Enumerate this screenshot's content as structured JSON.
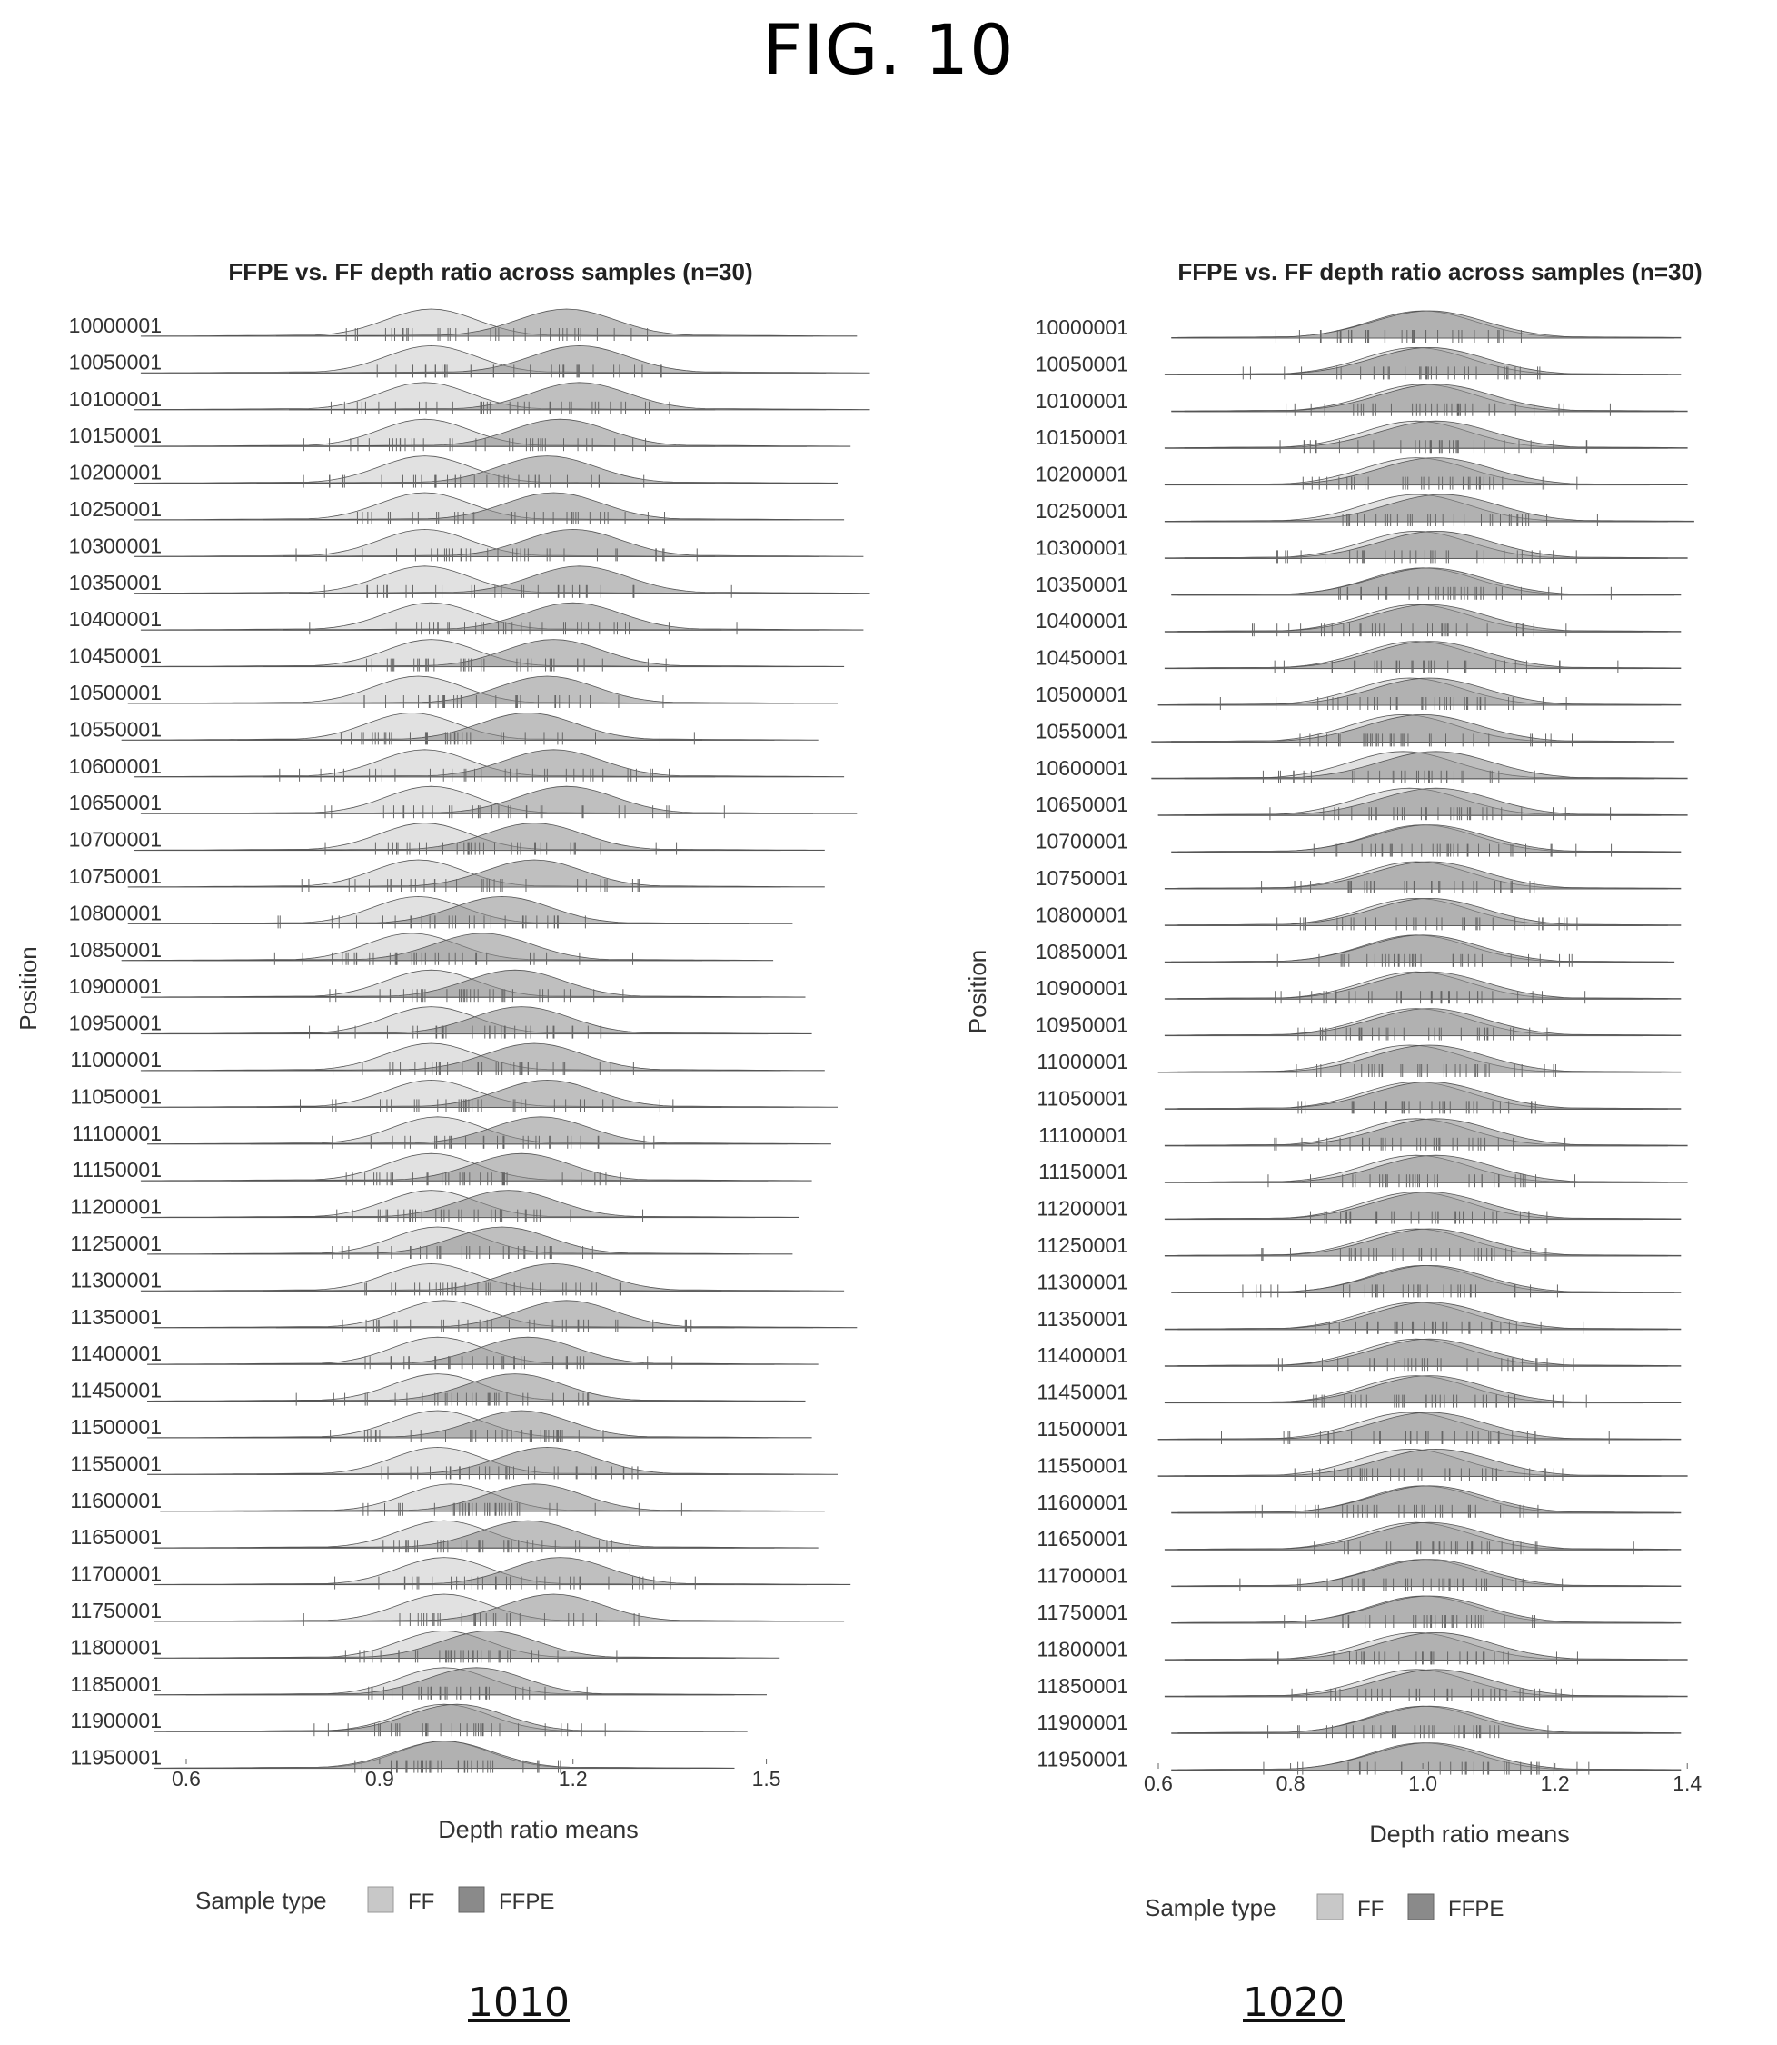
{
  "figure_title": "FIG. 10",
  "panel_refs": [
    "1010",
    "1020"
  ],
  "colors": {
    "ff": "#c8c8c8",
    "ffpe": "#8a8a8a",
    "outline": "#555555",
    "tick": "#666666"
  },
  "chart_data": [
    {
      "type": "ridgeline",
      "title": "FFPE vs. FF depth ratio across samples (n=30)",
      "xlabel": "Depth ratio means",
      "ylabel": "Position",
      "xlim": [
        0.6,
        1.65
      ],
      "xticks": [
        0.6,
        0.9,
        1.2,
        1.5
      ],
      "legend": {
        "title": "Sample type",
        "entries": [
          "FF",
          "FFPE"
        ],
        "position": "bottom"
      },
      "categories": [
        "10000001",
        "10050001",
        "10100001",
        "10150001",
        "10200001",
        "10250001",
        "10300001",
        "10350001",
        "10400001",
        "10450001",
        "10500001",
        "10550001",
        "10600001",
        "10650001",
        "10700001",
        "10750001",
        "10800001",
        "10850001",
        "10900001",
        "10950001",
        "11000001",
        "11050001",
        "11100001",
        "11150001",
        "11200001",
        "11250001",
        "11300001",
        "11350001",
        "11400001",
        "11450001",
        "11500001",
        "11550001",
        "11600001",
        "11650001",
        "11700001",
        "11750001",
        "11800001",
        "11850001",
        "11900001",
        "11950001"
      ],
      "series": [
        {
          "name": "FF",
          "peaks": [
            0.98,
            0.98,
            0.97,
            0.97,
            0.97,
            0.97,
            0.97,
            0.97,
            0.98,
            0.98,
            0.96,
            0.95,
            0.97,
            0.98,
            0.97,
            0.96,
            0.96,
            0.95,
            0.98,
            0.98,
            0.98,
            0.98,
            0.99,
            0.98,
            0.98,
            0.99,
            0.98,
            1.0,
            0.99,
            0.99,
            0.99,
            0.99,
            1.01,
            1.0,
            1.0,
            1.0,
            1.0,
            1.0,
            1.0,
            1.0
          ]
        },
        {
          "name": "FFPE",
          "peaks": [
            1.19,
            1.21,
            1.21,
            1.18,
            1.16,
            1.17,
            1.2,
            1.21,
            1.2,
            1.17,
            1.16,
            1.13,
            1.17,
            1.19,
            1.14,
            1.14,
            1.09,
            1.06,
            1.11,
            1.12,
            1.14,
            1.16,
            1.15,
            1.12,
            1.1,
            1.09,
            1.17,
            1.19,
            1.13,
            1.11,
            1.12,
            1.16,
            1.14,
            1.13,
            1.18,
            1.17,
            1.07,
            1.05,
            1.02,
            1.0
          ]
        }
      ]
    },
    {
      "type": "ridgeline",
      "title": "FFPE vs. FF depth ratio across samples (n=30)",
      "xlabel": "Depth ratio means",
      "ylabel": "Position",
      "xlim": [
        0.6,
        1.5
      ],
      "xticks": [
        0.6,
        0.8,
        1.0,
        1.2,
        1.4
      ],
      "xtick_labels": [
        "0.6",
        "0.8",
        "1.0",
        "1.2",
        "1.4"
      ],
      "legend": {
        "title": "Sample type",
        "entries": [
          "FF",
          "FFPE"
        ],
        "position": "bottom"
      },
      "categories": [
        "10000001",
        "10050001",
        "10100001",
        "10150001",
        "10200001",
        "10250001",
        "10300001",
        "10350001",
        "10400001",
        "10450001",
        "10500001",
        "10550001",
        "10600001",
        "10650001",
        "10700001",
        "10750001",
        "10800001",
        "10850001",
        "10900001",
        "10950001",
        "11000001",
        "11050001",
        "11100001",
        "11150001",
        "11200001",
        "11250001",
        "11300001",
        "11350001",
        "11400001",
        "11450001",
        "11500001",
        "11550001",
        "11600001",
        "11650001",
        "11700001",
        "11750001",
        "11800001",
        "11850001",
        "11900001",
        "11950001"
      ],
      "series": [
        {
          "name": "FF",
          "peaks": [
            1.0,
            0.99,
            1.0,
            0.99,
            0.99,
            0.99,
            0.99,
            1.0,
            0.99,
            0.99,
            0.98,
            0.97,
            0.97,
            0.98,
            1.0,
            0.99,
            0.99,
            0.99,
            0.99,
            0.99,
            0.98,
            0.99,
            0.99,
            0.99,
            0.99,
            0.99,
            1.0,
            0.99,
            0.99,
            0.99,
            0.98,
            0.98,
            1.0,
            0.99,
            1.0,
            1.0,
            0.99,
            0.99,
            1.0,
            1.0
          ]
        },
        {
          "name": "FFPE",
          "peaks": [
            1.01,
            1.01,
            1.02,
            1.02,
            1.02,
            1.03,
            1.02,
            1.01,
            1.01,
            1.01,
            1.01,
            1.0,
            1.02,
            1.02,
            1.01,
            1.01,
            1.01,
            1.0,
            1.01,
            1.01,
            1.01,
            1.01,
            1.02,
            1.02,
            1.01,
            1.01,
            1.01,
            1.01,
            1.01,
            1.01,
            1.01,
            1.02,
            1.01,
            1.01,
            1.01,
            1.01,
            1.02,
            1.02,
            1.01,
            1.01
          ]
        }
      ]
    }
  ]
}
